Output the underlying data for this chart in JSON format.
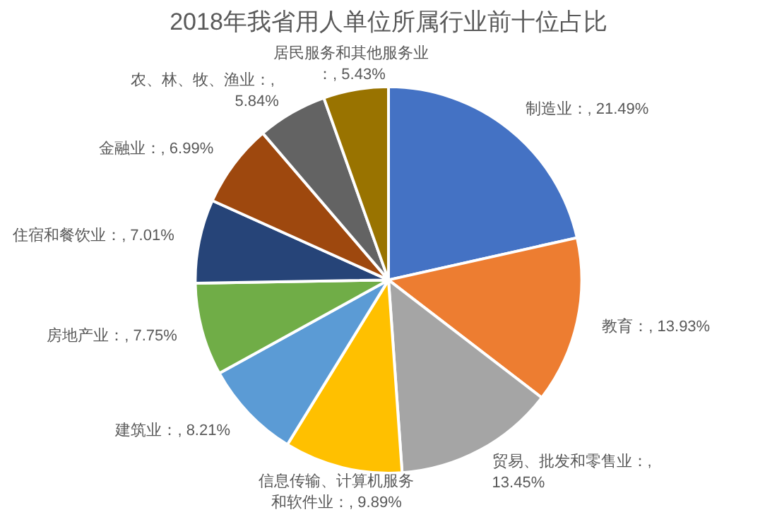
{
  "chart_data": {
    "type": "pie",
    "title": "2018年我省用人单位所属行业前十位占比",
    "categories": [
      "制造业",
      "教育",
      "贸易、批发和零售业",
      "信息传输、计算机服务和软件业",
      "建筑业",
      "房地产业",
      "住宿和餐饮业",
      "金融业",
      "农、林、牧、渔业",
      "居民服务和其他服务业"
    ],
    "values": [
      21.49,
      13.93,
      13.45,
      9.89,
      8.21,
      7.75,
      7.01,
      6.99,
      5.84,
      5.43
    ],
    "value_labels": [
      "：, 21.49%",
      "：, 13.93%",
      "：, 13.45%",
      "：, 9.89%",
      "：, 8.21%",
      "：, 7.75%",
      "：, 7.01%",
      "：, 6.99%",
      "：, 5.84%",
      "：, 5.43%"
    ],
    "colors": [
      "#4472c4",
      "#ed7d31",
      "#a5a5a5",
      "#ffc000",
      "#5b9bd5",
      "#70ad47",
      "#264478",
      "#9e480e",
      "#636363",
      "#997300"
    ],
    "legend": false
  }
}
